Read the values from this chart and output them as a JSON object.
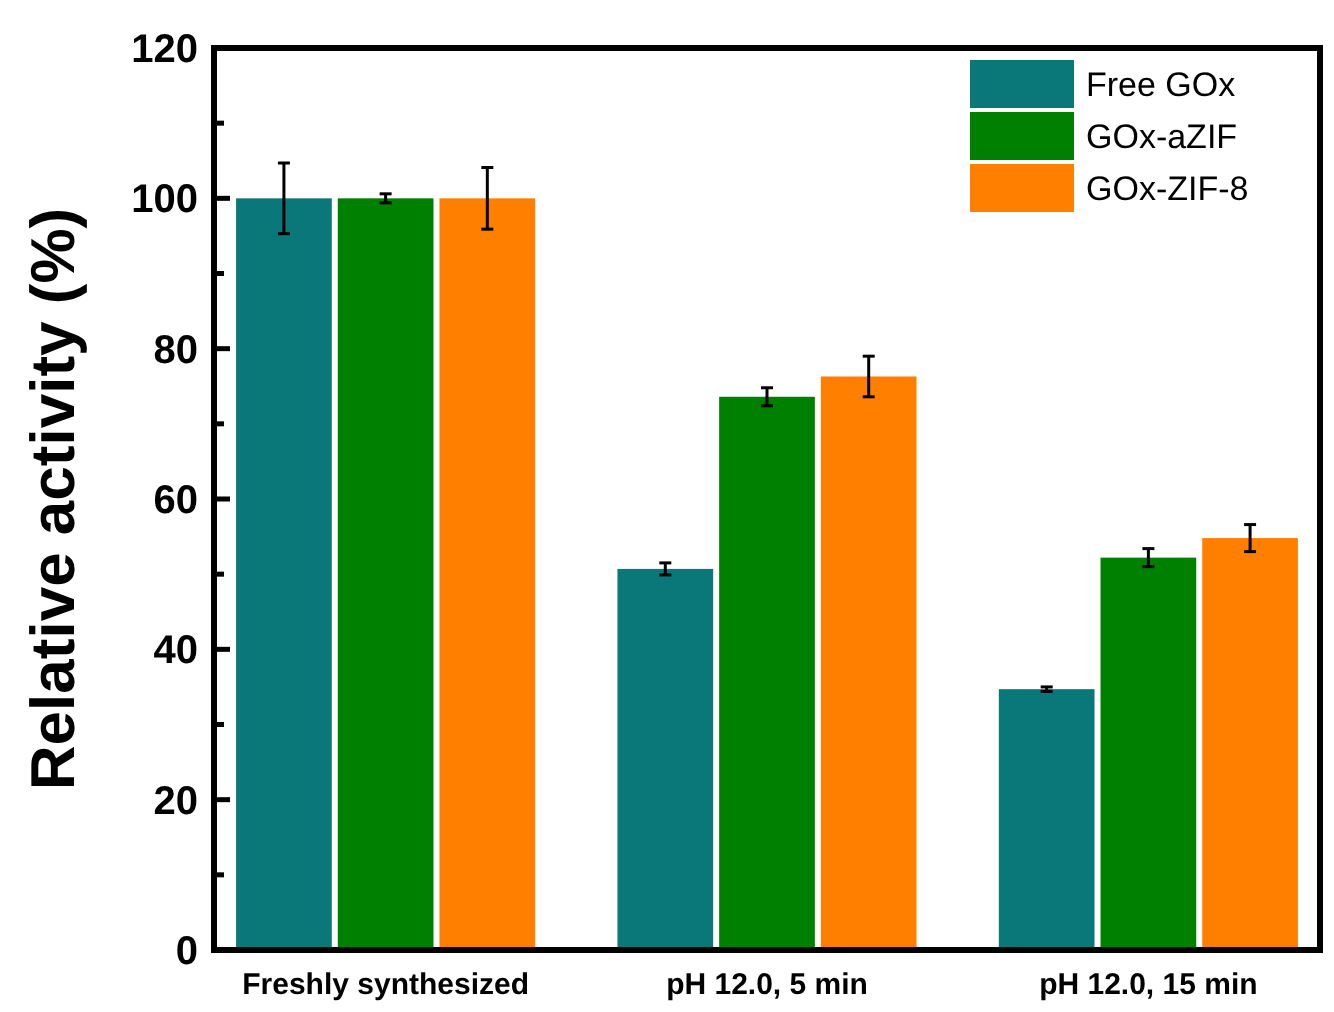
{
  "chart_data": {
    "type": "bar",
    "ylabel": "Relative activity (%)",
    "categories": [
      "Freshly synthesized",
      "pH 12.0, 5 min",
      "pH 12.0, 15 min"
    ],
    "series": [
      {
        "name": "Free GOx",
        "color": "#0a7878",
        "values": [
          100,
          50.7,
          34.7
        ],
        "errors": [
          4.7,
          0.8,
          0.3
        ]
      },
      {
        "name": "GOx-aZIF",
        "color": "#008000",
        "values": [
          100,
          73.6,
          52.2
        ],
        "errors": [
          0.6,
          1.2,
          1.2
        ]
      },
      {
        "name": "GOx-ZIF-8",
        "color": "#ff8000",
        "values": [
          100,
          76.3,
          54.8
        ],
        "errors": [
          4.1,
          2.7,
          1.8
        ]
      }
    ],
    "ylim": [
      0,
      120
    ],
    "yticks": [
      0,
      {
        "value": 10,
        "label": null
      },
      20,
      {
        "value": 30,
        "label": null
      },
      40,
      {
        "value": 50,
        "label": null
      },
      60,
      {
        "value": 70,
        "label": null
      },
      80,
      {
        "value": 90,
        "label": null
      },
      100,
      {
        "value": 110,
        "label": null
      },
      120
    ],
    "legend": "top right",
    "grid": false
  }
}
